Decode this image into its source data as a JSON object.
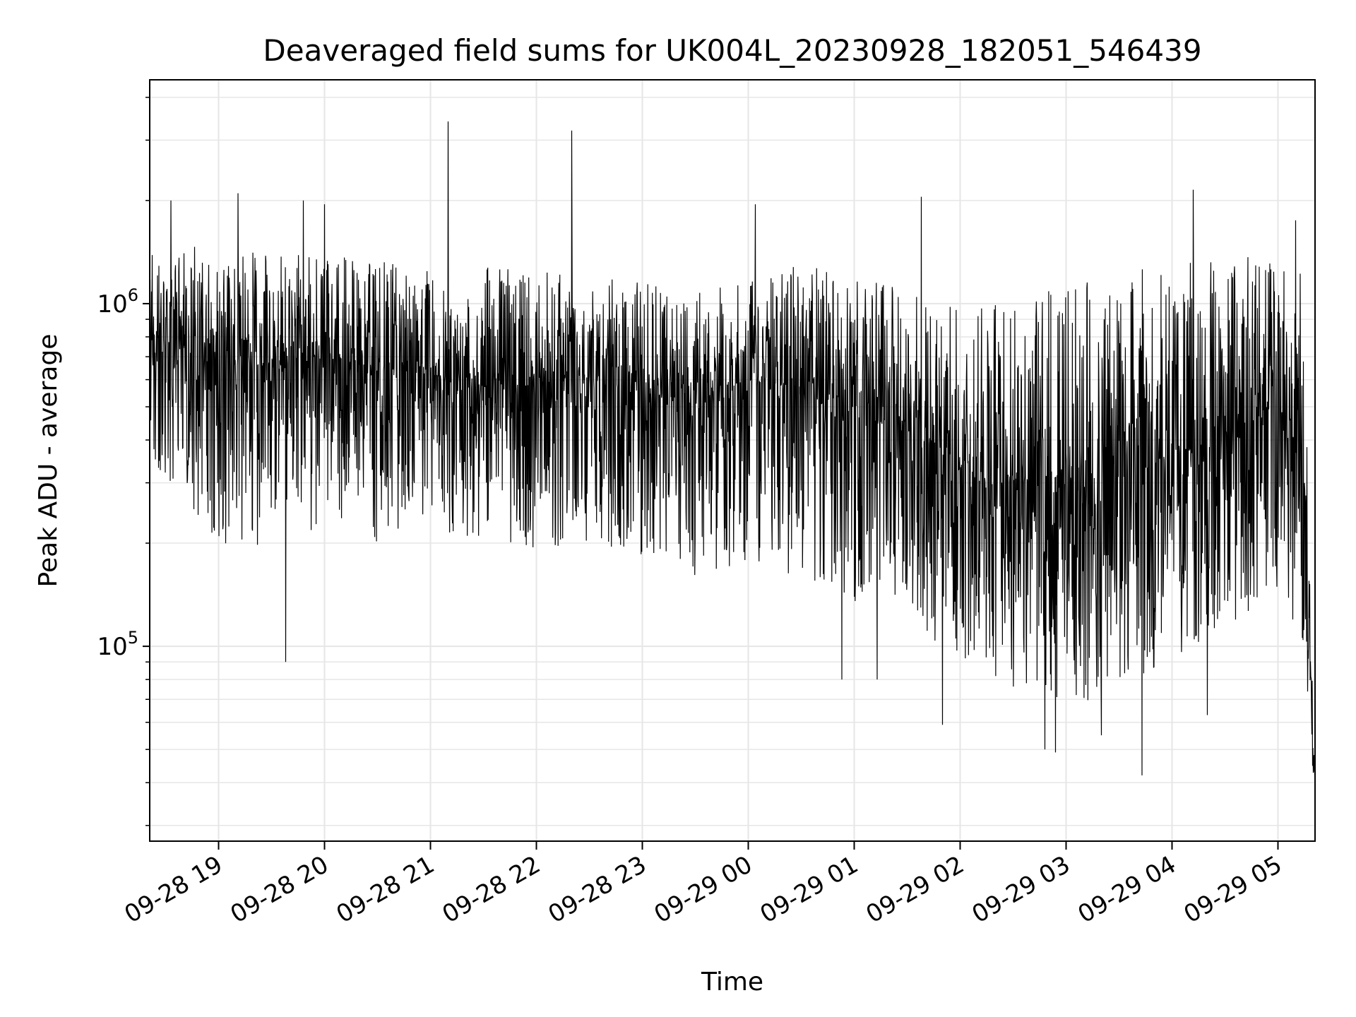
{
  "chart_data": {
    "type": "line",
    "title": "Deaveraged field sums for UK004L_20230928_182051_546439",
    "xlabel": "Time",
    "ylabel": "Peak ADU - average",
    "yscale": "log",
    "ylim": [
      27000,
      4500000
    ],
    "xlim": [
      "2023-09-28 18:21",
      "2023-09-29 05:21"
    ],
    "grid": true,
    "line_color": "#000000",
    "x_ticks": [
      "09-28 19",
      "09-28 20",
      "09-28 21",
      "09-28 22",
      "09-28 23",
      "09-29 00",
      "09-29 01",
      "09-29 02",
      "09-29 03",
      "09-29 04",
      "09-29 05"
    ],
    "y_ticks": [
      {
        "base": "10",
        "exp": "5",
        "value": 100000
      },
      {
        "base": "10",
        "exp": "6",
        "value": 1000000
      }
    ],
    "series_envelope": {
      "x": [
        "2023-09-28 18:21",
        "2023-09-28 19:00",
        "2023-09-28 19:30",
        "2023-09-28 20:00",
        "2023-09-28 20:30",
        "2023-09-28 21:00",
        "2023-09-28 21:30",
        "2023-09-28 22:00",
        "2023-09-28 22:30",
        "2023-09-28 23:00",
        "2023-09-28 23:30",
        "2023-09-29 00:00",
        "2023-09-29 00:30",
        "2023-09-29 01:00",
        "2023-09-29 01:30",
        "2023-09-29 02:00",
        "2023-09-29 02:30",
        "2023-09-29 03:00",
        "2023-09-29 03:30",
        "2023-09-29 04:00",
        "2023-09-29 04:30",
        "2023-09-29 05:00",
        "2023-09-29 05:15",
        "2023-09-29 05:21"
      ],
      "median": [
        800000,
        700000,
        650000,
        700000,
        650000,
        620000,
        600000,
        580000,
        600000,
        550000,
        520000,
        600000,
        560000,
        480000,
        420000,
        350000,
        300000,
        280000,
        300000,
        360000,
        420000,
        500000,
        300000,
        35000
      ],
      "low": [
        350000,
        200000,
        180000,
        220000,
        200000,
        220000,
        200000,
        190000,
        200000,
        180000,
        160000,
        170000,
        150000,
        130000,
        120000,
        90000,
        75000,
        65000,
        75000,
        90000,
        110000,
        150000,
        100000,
        28000
      ],
      "high": [
        1400000,
        1500000,
        1400000,
        1400000,
        1350000,
        1300000,
        1300000,
        1250000,
        1200000,
        1150000,
        1100000,
        1200000,
        1300000,
        1200000,
        1100000,
        1000000,
        1100000,
        1200000,
        1250000,
        1300000,
        1350000,
        1400000,
        1200000,
        40000
      ]
    },
    "spikes": [
      {
        "x": "2023-09-28 21:10",
        "y": 3400000
      },
      {
        "x": "2023-09-28 22:20",
        "y": 3200000
      },
      {
        "x": "2023-09-28 19:11",
        "y": 2100000
      },
      {
        "x": "2023-09-28 18:33",
        "y": 2000000
      },
      {
        "x": "2023-09-28 19:48",
        "y": 2000000
      },
      {
        "x": "2023-09-28 20:00",
        "y": 1950000
      },
      {
        "x": "2023-09-29 00:04",
        "y": 1950000
      },
      {
        "x": "2023-09-29 01:38",
        "y": 2050000
      },
      {
        "x": "2023-09-29 04:12",
        "y": 2150000
      },
      {
        "x": "2023-09-29 05:10",
        "y": 1750000
      },
      {
        "x": "2023-09-28 19:38",
        "y": 90000
      },
      {
        "x": "2023-09-29 01:50",
        "y": 59000
      },
      {
        "x": "2023-09-29 02:48",
        "y": 50000
      },
      {
        "x": "2023-09-29 02:54",
        "y": 49000
      },
      {
        "x": "2023-09-29 03:43",
        "y": 42000
      },
      {
        "x": "2023-09-29 03:20",
        "y": 55000
      },
      {
        "x": "2023-09-29 00:53",
        "y": 80000
      },
      {
        "x": "2023-09-29 01:13",
        "y": 80000
      },
      {
        "x": "2023-09-29 04:20",
        "y": 63000
      }
    ]
  }
}
